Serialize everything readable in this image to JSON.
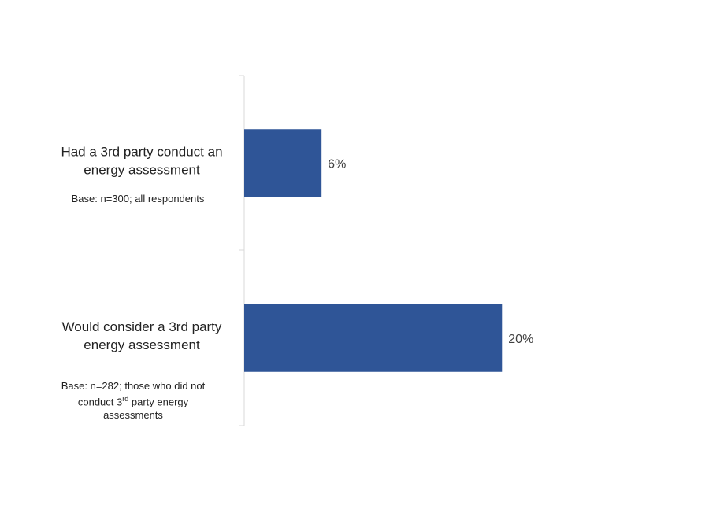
{
  "chart_data": {
    "type": "bar",
    "orientation": "horizontal",
    "categories": [
      "Had a 3rd party conduct an energy assessment",
      "Would consider a 3rd party energy assessment"
    ],
    "category_lines": [
      [
        "Had a 3rd party conduct an",
        "energy assessment"
      ],
      [
        "Would consider a 3rd party",
        "energy assessment"
      ]
    ],
    "values": [
      6,
      20
    ],
    "value_labels": [
      "6%",
      "20%"
    ],
    "unit": "%",
    "xlim": [
      0,
      33
    ],
    "grid": false,
    "legend": "none",
    "bar_color": "#2F5597",
    "notes": [
      {
        "pre": "Base: n=300;  all respondents",
        "sup": "",
        "post": ""
      },
      {
        "pre": "Base: n=282;  those who did not conduct 3",
        "sup": "rd",
        "post": " party energy assessments"
      }
    ]
  }
}
